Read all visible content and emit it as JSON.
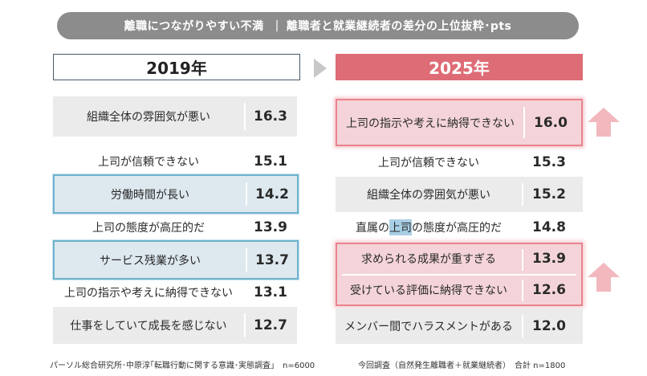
{
  "header": {
    "title": "離職につながりやすい不満",
    "separator": "|",
    "subtitle": "離職者と就業継続者の差分の上位抜粋･pts"
  },
  "chart_data": [
    {
      "type": "table",
      "title": "2019年",
      "categories": [
        "組織全体の雰囲気が悪い",
        "上司が信頼できない",
        "労働時間が長い",
        "上司の態度が高圧的だ",
        "サービス残業が多い",
        "上司の指示や考えに納得できない",
        "仕事をしていて成長を感じない"
      ],
      "values": [
        16.3,
        15.1,
        14.2,
        13.9,
        13.7,
        13.1,
        12.7
      ],
      "highlighted": [
        "労働時間が長い",
        "サービス残業が多い"
      ]
    },
    {
      "type": "table",
      "title": "2025年",
      "categories": [
        "上司の指示や考えに納得できない",
        "上司が信頼できない",
        "組織全体の雰囲気が悪い",
        "直属の上司の態度が高圧的だ",
        "求められる成果が重すぎる",
        "受けている評価に納得できない",
        "メンバー間でハラスメントがある"
      ],
      "values": [
        16.0,
        15.3,
        15.2,
        14.8,
        13.9,
        12.6,
        12.0
      ],
      "highlighted": [
        "上司の指示や考えに納得できない",
        "求められる成果が重すぎる",
        "受けている評価に納得できない"
      ]
    }
  ],
  "left": {
    "year": "2019年",
    "rows": [
      {
        "label": "組織全体の雰囲気が悪い",
        "value": "16.3"
      },
      {
        "label": "上司が信頼できない",
        "value": "15.1"
      },
      {
        "label": "労働時間が長い",
        "value": "14.2"
      },
      {
        "label": "上司の態度が高圧的だ",
        "value": "13.9"
      },
      {
        "label": "サービス残業が多い",
        "value": "13.7"
      },
      {
        "label": "上司の指示や考えに納得できない",
        "value": "13.1"
      },
      {
        "label": "仕事をしていて成長を感じない",
        "value": "12.7"
      }
    ],
    "footnote": "パーソル総合研究所･中原淳｢転職行動に関する意識･実態調査｣　n=6000"
  },
  "right": {
    "year": "2025年",
    "rows": [
      {
        "label": "上司の指示や考えに納得できない",
        "value": "16.0"
      },
      {
        "label": "上司が信頼できない",
        "value": "15.3"
      },
      {
        "label": "組織全体の雰囲気が悪い",
        "value": "15.2"
      },
      {
        "label_pre": "直属の",
        "label_mark": "上司",
        "label_post": "の態度が高圧的だ",
        "value": "14.8"
      },
      {
        "label": "求められる成果が重すぎる",
        "value": "13.9"
      },
      {
        "label": "受けている評価に納得できない",
        "value": "12.6"
      },
      {
        "label": "メンバー間でハラスメントがある",
        "value": "12.0"
      }
    ],
    "footnote": "今回調査（自然発生離職者＋就業継続者）　合計 n=1800"
  },
  "colors": {
    "banner": "#8c8c8c",
    "year_2025": "#de6c76",
    "shade": "#ebebeb",
    "highlight_blue": "#6fb2cc",
    "highlight_pink": "#e8848e",
    "arrow": "#f2b8be"
  },
  "icons": {
    "transition": "triangle-right-icon",
    "increase": "up-arrow-icon"
  }
}
